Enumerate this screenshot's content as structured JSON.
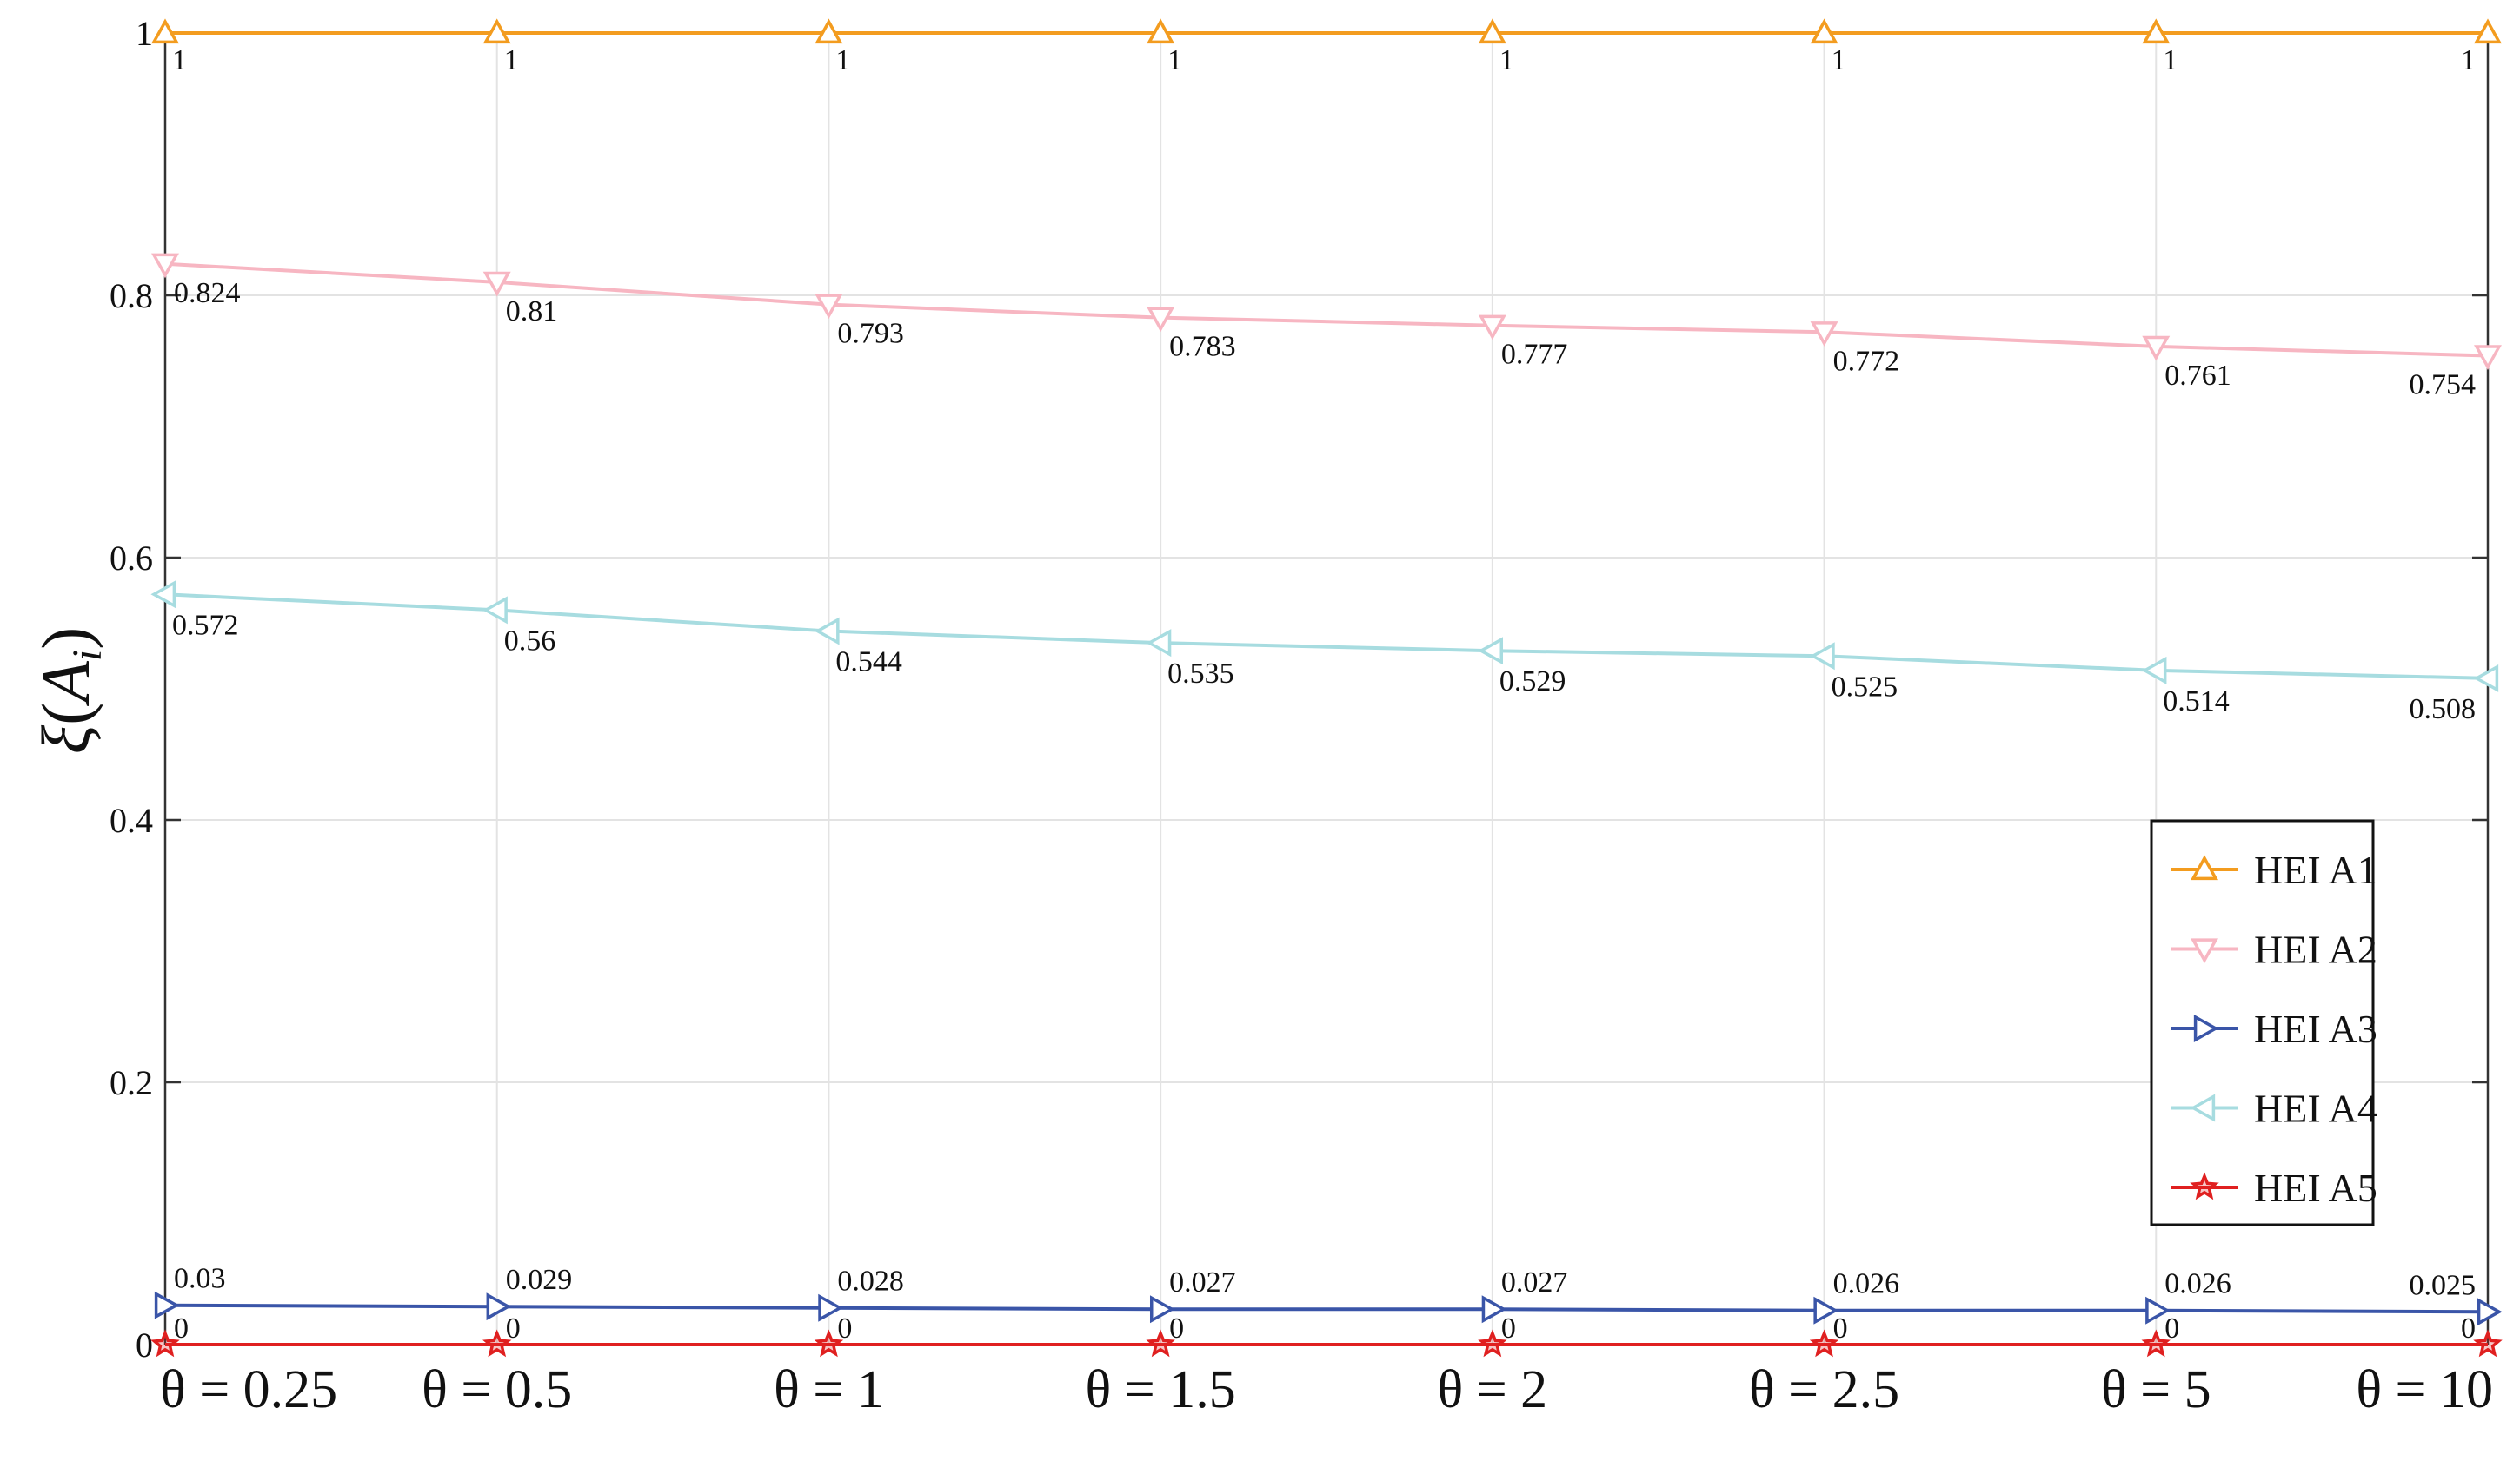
{
  "chart_data": {
    "type": "line",
    "title": "",
    "xlabel": "",
    "ylabel": "ξ(A_i)",
    "ylabel_parts": {
      "main": "ξ",
      "open": "(",
      "var": "A",
      "sub": "i",
      "close": ")"
    },
    "categories": [
      "θ = 0.25",
      "θ = 0.5",
      "θ = 1",
      "θ = 1.5",
      "θ = 2",
      "θ = 2.5",
      "θ = 5",
      "θ = 10"
    ],
    "ylim": [
      0,
      1
    ],
    "yticks": [
      0,
      0.2,
      0.4,
      0.6,
      0.8,
      1
    ],
    "ytick_labels": [
      "0",
      "0.2",
      "0.4",
      "0.6",
      "0.8",
      "1"
    ],
    "grid": true,
    "legend_position": "bottom-right",
    "series": [
      {
        "name": "HEI A1",
        "color": "#F39C1F",
        "marker": "triangle-up",
        "values": [
          1,
          1,
          1,
          1,
          1,
          1,
          1,
          1
        ],
        "labels": [
          "1",
          "1",
          "1",
          "1",
          "1",
          "1",
          "1",
          "1"
        ]
      },
      {
        "name": "HEI A2",
        "color": "#F7B6C2",
        "marker": "triangle-down",
        "values": [
          0.824,
          0.81,
          0.793,
          0.783,
          0.777,
          0.772,
          0.761,
          0.754
        ],
        "labels": [
          "0.824",
          "0.81",
          "0.793",
          "0.783",
          "0.777",
          "0.772",
          "0.761",
          "0.754"
        ]
      },
      {
        "name": "HEI A3",
        "color": "#3A55A8",
        "marker": "triangle-right",
        "values": [
          0.03,
          0.029,
          0.028,
          0.027,
          0.027,
          0.026,
          0.026,
          0.025
        ],
        "labels": [
          "0.03",
          "0.029",
          "0.028",
          "0.027",
          "0.027",
          "0.026",
          "0.026",
          "0.025"
        ]
      },
      {
        "name": "HEI A4",
        "color": "#A7DCE0",
        "marker": "triangle-left",
        "values": [
          0.572,
          0.56,
          0.544,
          0.535,
          0.529,
          0.525,
          0.514,
          0.508
        ],
        "labels": [
          "0.572",
          "0.56",
          "0.544",
          "0.535",
          "0.529",
          "0.525",
          "0.514",
          "0.508"
        ]
      },
      {
        "name": "HEI A5",
        "color": "#E02020",
        "marker": "star",
        "values": [
          0,
          0,
          0,
          0,
          0,
          0,
          0,
          0
        ],
        "labels": [
          "0",
          "0",
          "0",
          "0",
          "0",
          "0",
          "0",
          "0"
        ]
      }
    ]
  }
}
